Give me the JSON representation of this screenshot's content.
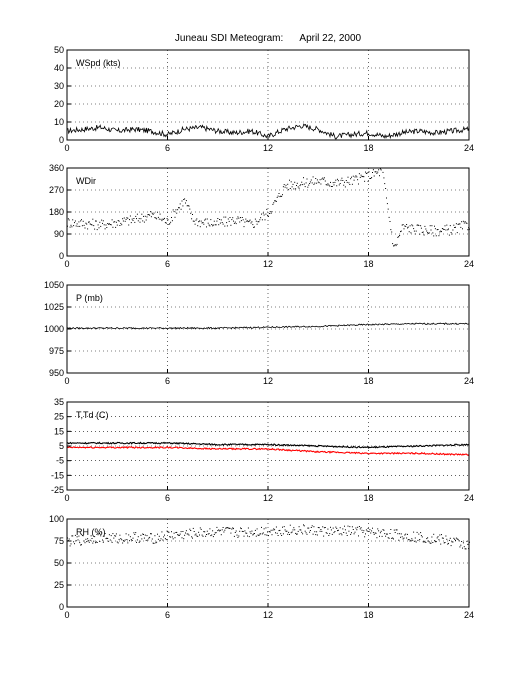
{
  "figure": {
    "title": "Juneau SDI Meteogram:      April 22, 2000"
  },
  "chart_data": [
    {
      "type": "line",
      "label": "WSpd (kts)",
      "x_ticks": [
        0,
        6,
        12,
        18,
        24
      ],
      "y_ticks": [
        0,
        10,
        20,
        30,
        40,
        50
      ],
      "xlim": [
        0,
        24
      ],
      "ylim": [
        0,
        50
      ],
      "grid": true,
      "series": [
        {
          "color": "#000000",
          "x": [
            0,
            1,
            2,
            3,
            4,
            5,
            6,
            7,
            8,
            9,
            10,
            11,
            12,
            13,
            14,
            15,
            16,
            17,
            18,
            19,
            20,
            21,
            22,
            23,
            24
          ],
          "y": [
            5,
            6,
            7,
            5,
            6,
            5,
            3,
            6,
            7,
            5,
            4,
            5,
            2,
            6,
            8,
            6,
            2,
            3,
            4,
            2,
            4,
            5,
            4,
            5,
            6
          ]
        }
      ]
    },
    {
      "type": "scatter",
      "label": "WDir",
      "x_ticks": [
        0,
        6,
        12,
        18,
        24
      ],
      "y_ticks": [
        0,
        90,
        180,
        270,
        360
      ],
      "xlim": [
        0,
        24
      ],
      "ylim": [
        0,
        360
      ],
      "grid": true,
      "series": [
        {
          "color": "#000000",
          "x": [
            0,
            1,
            2,
            3,
            4,
            5,
            5.5,
            6,
            6.5,
            7,
            7.5,
            8,
            9,
            10,
            11,
            12,
            12.5,
            13,
            14,
            15,
            16,
            17,
            18,
            18.8,
            19.5,
            20,
            21,
            22,
            23,
            24
          ],
          "y": [
            140,
            135,
            130,
            140,
            150,
            170,
            160,
            140,
            190,
            230,
            150,
            140,
            135,
            150,
            130,
            180,
            230,
            290,
            300,
            310,
            300,
            310,
            330,
            350,
            30,
            120,
            110,
            105,
            110,
            130
          ]
        }
      ]
    },
    {
      "type": "line",
      "label": "P (mb)",
      "x_ticks": [
        0,
        6,
        12,
        18,
        24
      ],
      "y_ticks": [
        950,
        975,
        1000,
        1025,
        1050
      ],
      "xlim": [
        0,
        24
      ],
      "ylim": [
        950,
        1050
      ],
      "grid": true,
      "series": [
        {
          "color": "#000000",
          "x": [
            0,
            3,
            6,
            9,
            12,
            15,
            18,
            21,
            24
          ],
          "y": [
            1001,
            1001,
            1001,
            1001,
            1002,
            1003,
            1005,
            1006,
            1006
          ]
        }
      ]
    },
    {
      "type": "line",
      "label": "T,Td (C)",
      "x_ticks": [
        0,
        6,
        12,
        18,
        24
      ],
      "y_ticks": [
        -25,
        -15,
        -5,
        5,
        15,
        25,
        35
      ],
      "xlim": [
        0,
        24
      ],
      "ylim": [
        -25,
        35
      ],
      "grid": true,
      "series": [
        {
          "color": "#000000",
          "x": [
            0,
            3,
            6,
            9,
            12,
            15,
            18,
            21,
            24
          ],
          "y": [
            7,
            7,
            7,
            6,
            6,
            5,
            4,
            5,
            6
          ]
        },
        {
          "color": "#ff0000",
          "x": [
            0,
            3,
            6,
            9,
            12,
            15,
            18,
            21,
            24
          ],
          "y": [
            4,
            4,
            4,
            3,
            3,
            1,
            0,
            0,
            -1
          ]
        }
      ]
    },
    {
      "type": "scatter",
      "label": "RH (%)",
      "x_ticks": [
        0,
        6,
        12,
        18,
        24
      ],
      "y_ticks": [
        0,
        25,
        50,
        75,
        100
      ],
      "xlim": [
        0,
        24
      ],
      "ylim": [
        0,
        100
      ],
      "grid": true,
      "series": [
        {
          "color": "#000000",
          "x": [
            0,
            1,
            2,
            3,
            4,
            5,
            6,
            7,
            8,
            9,
            10,
            11,
            12,
            13,
            14,
            15,
            16,
            17,
            18,
            19,
            20,
            21,
            22,
            23,
            24
          ],
          "y": [
            75,
            77,
            80,
            78,
            80,
            78,
            82,
            83,
            85,
            86,
            85,
            86,
            87,
            88,
            88,
            87,
            86,
            87,
            85,
            84,
            82,
            80,
            78,
            75,
            70
          ]
        }
      ]
    }
  ]
}
